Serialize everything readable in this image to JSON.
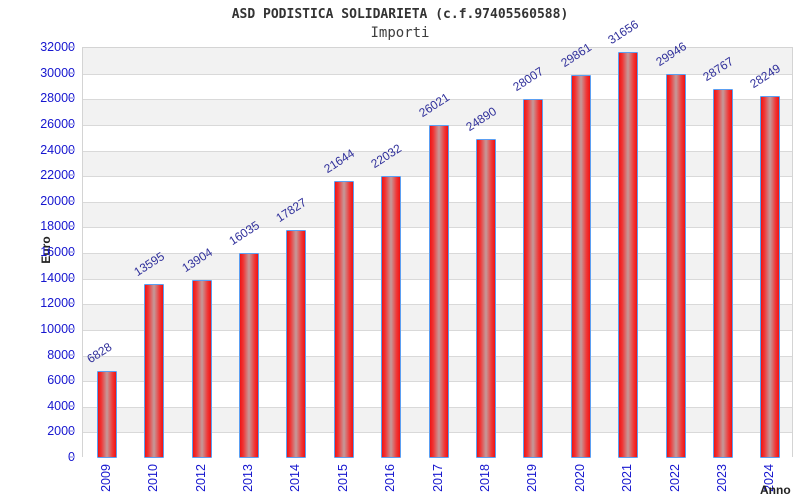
{
  "figure": {
    "title": "ASD PODISTICA SOLIDARIETA (c.f.97405560588)",
    "subtitle": "Importi"
  },
  "chart_data": {
    "type": "bar",
    "title": "ASD PODISTICA SOLIDARIETA (c.f.97405560588)",
    "subtitle": "Importi",
    "categories": [
      "2009",
      "2010",
      "2012",
      "2013",
      "2014",
      "2015",
      "2016",
      "2017",
      "2018",
      "2019",
      "2020",
      "2021",
      "2022",
      "2023",
      "2024"
    ],
    "values": [
      6828,
      13595,
      13904,
      16035,
      17827,
      21644,
      22032,
      26021,
      24890,
      28007,
      29861,
      31656,
      29946,
      28767,
      28249
    ],
    "xlabel": "Anno",
    "ylabel": "Euro",
    "ylim": [
      0,
      32000
    ],
    "ytick_step": 2000,
    "ytick_labels": [
      "0",
      "2000",
      "4000",
      "6000",
      "8000",
      "10000",
      "12000",
      "14000",
      "16000",
      "18000",
      "20000",
      "22000",
      "24000",
      "26000",
      "28000",
      "30000",
      "32000"
    ],
    "grid": "horizontal-bands",
    "legend": "none",
    "value_labels_shown": true,
    "colors": {
      "bar_edge_red": "#ee1414",
      "bar_mid_red": "#f13434",
      "bar_center_light": "#c49a9a",
      "bar_border_blue": "#5b9ff2",
      "axis_tick_label_blue": "#1616cf",
      "value_label_navy": "#30309b",
      "band_gray": "#f2f2f2",
      "band_white": "#ffffff",
      "gridline_gray": "#d9d9d9",
      "plot_border_gray": "#d4d4d4",
      "title_gray": "#333333"
    }
  }
}
